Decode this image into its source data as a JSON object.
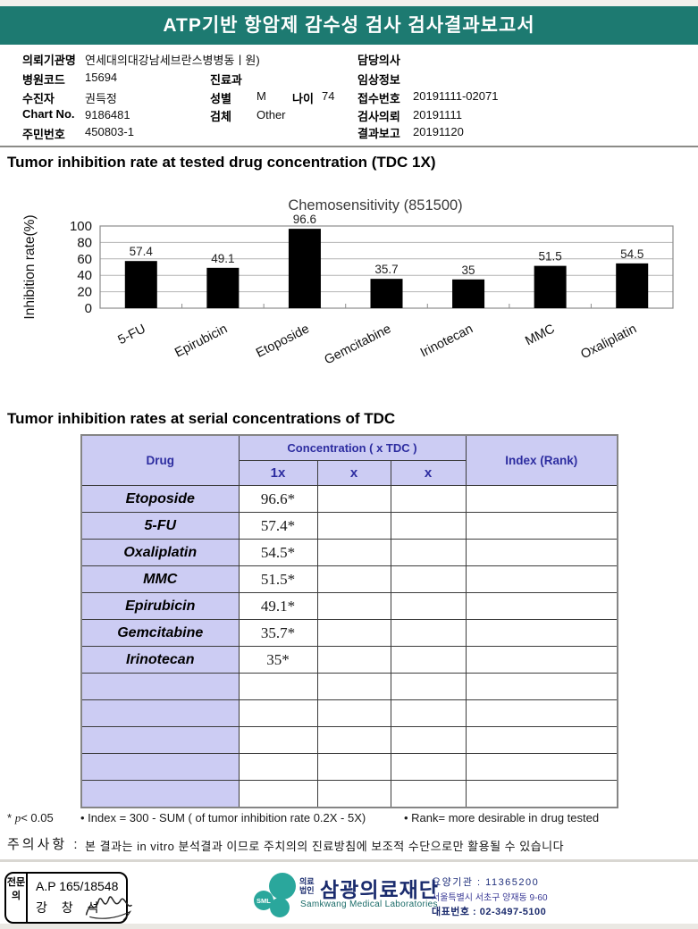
{
  "header": {
    "title": "ATP기반 항암제 감수성 검사 검사결과보고서"
  },
  "patient": {
    "org": {
      "label": "의뢰기관명",
      "value": "연세대의대강남세브란스병병동ㅣ원)"
    },
    "hospital_code": {
      "label": "병원코드",
      "value": "15694"
    },
    "patient_name": {
      "label": "수진자",
      "value": "권득정"
    },
    "chart_no": {
      "label": "Chart No.",
      "value": "9186481"
    },
    "resident_no": {
      "label": "주민번호",
      "value": "450803-1"
    },
    "department": {
      "label": "진료과",
      "value": ""
    },
    "sex": {
      "label": "성별",
      "value": "M"
    },
    "age": {
      "label": "나이",
      "value": "74"
    },
    "specimen": {
      "label": "검체",
      "value": "Other"
    },
    "doctor": {
      "label": "담당의사",
      "value": ""
    },
    "clinical_info": {
      "label": "임상정보",
      "value": ""
    },
    "receipt_no": {
      "label": "접수번호",
      "value": "20191111-02071"
    },
    "test_request": {
      "label": "검사의뢰",
      "value": "20191111"
    },
    "report_date": {
      "label": "결과보고",
      "value": "20191120"
    }
  },
  "section1_title": "Tumor inhibition rate at tested drug concentration (TDC 1X)",
  "section2_title": "Tumor inhibition rates at serial concentrations of TDC",
  "chart_data": {
    "type": "bar",
    "title": "Chemosensitivity (851500)",
    "ylabel": "Inhibition rate(%)",
    "xlabel": "",
    "categories": [
      "5-FU",
      "Epirubicin",
      "Etoposide",
      "Gemcitabine",
      "Irinotecan",
      "MMC",
      "Oxaliplatin"
    ],
    "values": [
      57.4,
      49.1,
      96.6,
      35.7,
      35,
      51.5,
      54.5
    ],
    "ylim": [
      0,
      100
    ],
    "yticks": [
      0,
      20,
      40,
      60,
      80,
      100
    ],
    "grid": true,
    "legend": false,
    "bar_color": "#000000"
  },
  "table": {
    "header": {
      "drug": "Drug",
      "concentration": "Concentration ( x TDC )",
      "sub": [
        "1x",
        "x",
        "x"
      ],
      "index": "Index (Rank)"
    },
    "rows": [
      {
        "drug": "Etoposide",
        "c1": "96.6*",
        "c2": "",
        "c3": "",
        "index": ""
      },
      {
        "drug": "5-FU",
        "c1": "57.4*",
        "c2": "",
        "c3": "",
        "index": ""
      },
      {
        "drug": "Oxaliplatin",
        "c1": "54.5*",
        "c2": "",
        "c3": "",
        "index": ""
      },
      {
        "drug": "MMC",
        "c1": "51.5*",
        "c2": "",
        "c3": "",
        "index": ""
      },
      {
        "drug": "Epirubicin",
        "c1": "49.1*",
        "c2": "",
        "c3": "",
        "index": ""
      },
      {
        "drug": "Gemcitabine",
        "c1": "35.7*",
        "c2": "",
        "c3": "",
        "index": ""
      },
      {
        "drug": "Irinotecan",
        "c1": "35*",
        "c2": "",
        "c3": "",
        "index": ""
      },
      {
        "drug": "",
        "c1": "",
        "c2": "",
        "c3": "",
        "index": ""
      },
      {
        "drug": "",
        "c1": "",
        "c2": "",
        "c3": "",
        "index": ""
      },
      {
        "drug": "",
        "c1": "",
        "c2": "",
        "c3": "",
        "index": ""
      },
      {
        "drug": "",
        "c1": "",
        "c2": "",
        "c3": "",
        "index": ""
      },
      {
        "drug": "",
        "c1": "",
        "c2": "",
        "c3": "",
        "index": ""
      }
    ]
  },
  "footnotes": {
    "significance_star": "*",
    "significance_p": "p",
    "significance_rest": "< 0.05",
    "index_formula": "• Index = 300 - SUM ( of tumor inhibition rate 0.2X  -  5X)",
    "rank_note": "• Rank= more desirable in drug tested"
  },
  "caution": {
    "label": "주의사항 :",
    "text": "본 결과는 in vitro 분석결과 이므로 주치의의 진료방침에 보조적 수단으로만 활용될 수 있습니다"
  },
  "footer": {
    "stamp": {
      "role": "전문의",
      "license": "A.P 165/18548",
      "name": "강 창 석"
    },
    "logo": {
      "abbr": "SML",
      "org_type": "의료법인",
      "name": "삼광의료재단",
      "name_en": "Samkwang Medical Laboratories"
    },
    "contact": {
      "institution": "요양기관 : 11365200",
      "address": "서울특별시 서초구 양재동 9-60",
      "phone": "대표번호 : 02-3497-5100"
    }
  },
  "colors": {
    "header_teal": "#1d7a71",
    "logo_teal": "#2aa79c",
    "navy": "#1b2c6e",
    "table_header_bg": "#ccccf3",
    "table_header_text": "#2d2da0",
    "bar_color": "#000000"
  }
}
